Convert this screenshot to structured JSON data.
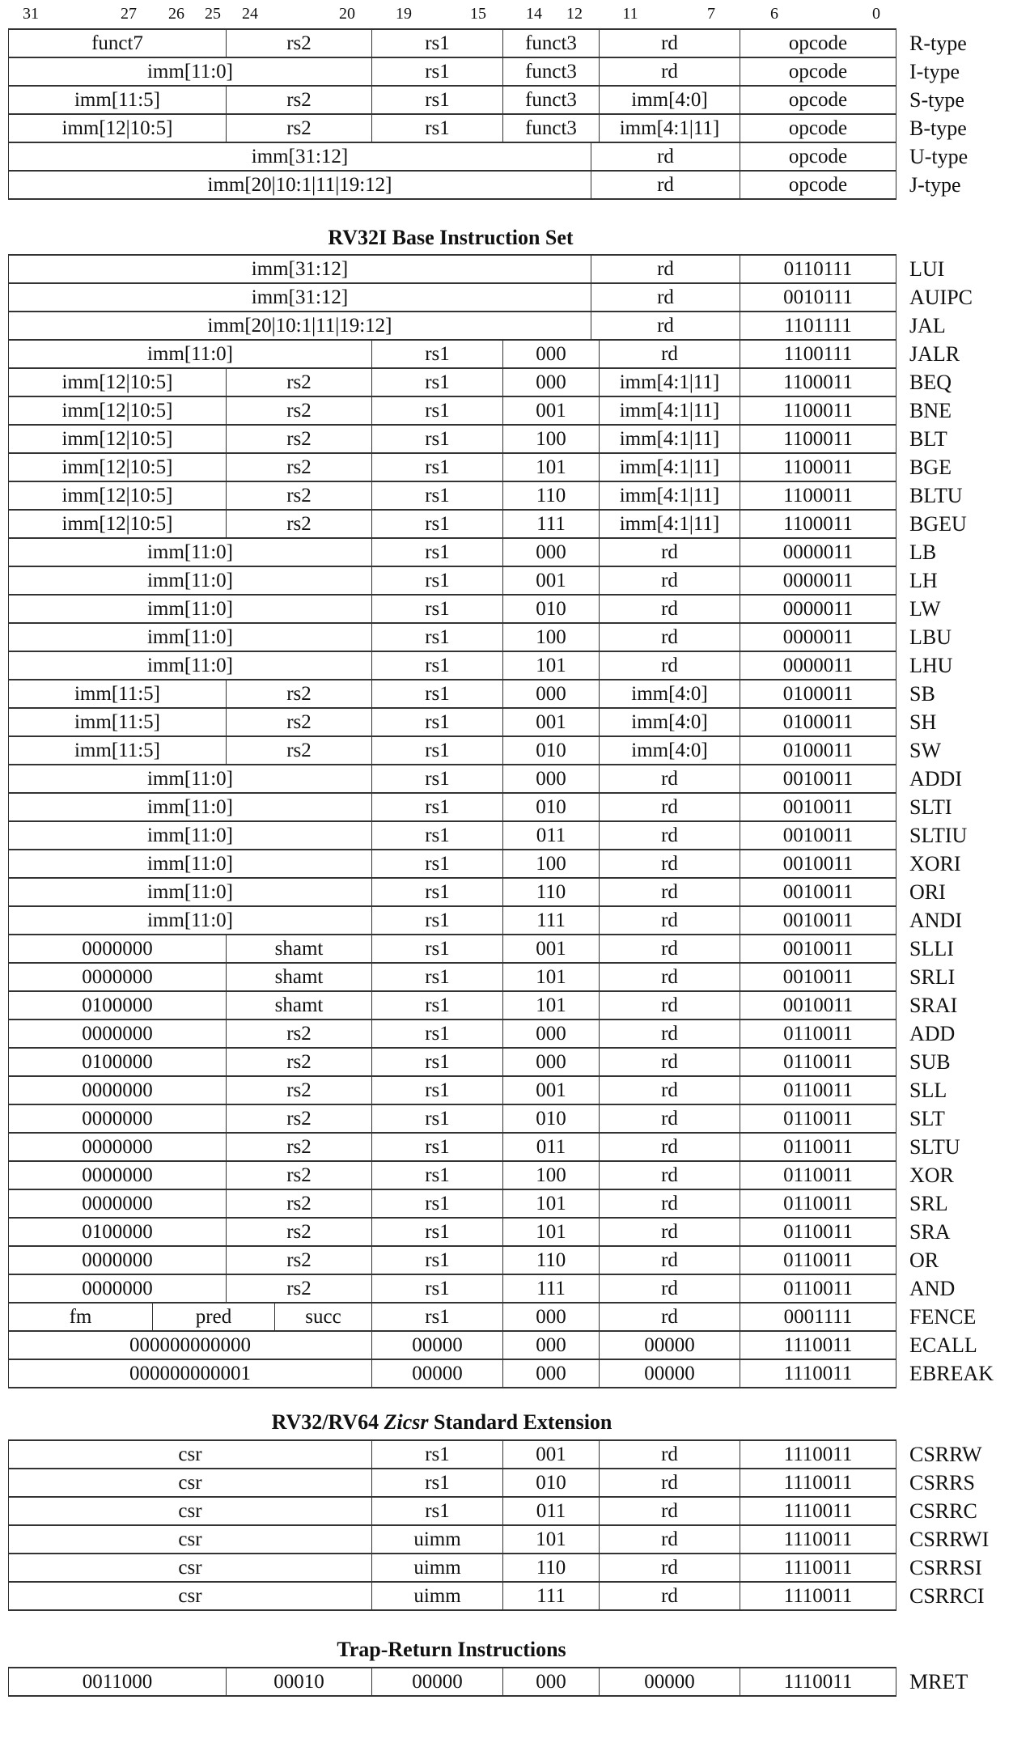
{
  "bit_numbers": [
    "31",
    "27",
    "26",
    "25",
    "24",
    "20",
    "19",
    "15",
    "14",
    "12",
    "11",
    "7",
    "6",
    "0"
  ],
  "formats": [
    {
      "cells": [
        "funct7",
        "rs2",
        "rs1",
        "funct3",
        "rd",
        "opcode"
      ],
      "name": "R-type"
    },
    {
      "cells": [
        "imm[11:0]",
        "rs1",
        "funct3",
        "rd",
        "opcode"
      ],
      "name": "I-type"
    },
    {
      "cells": [
        "imm[11:5]",
        "rs2",
        "rs1",
        "funct3",
        "imm[4:0]",
        "opcode"
      ],
      "name": "S-type"
    },
    {
      "cells": [
        "imm[12|10:5]",
        "rs2",
        "rs1",
        "funct3",
        "imm[4:1|11]",
        "opcode"
      ],
      "name": "B-type"
    },
    {
      "cells": [
        "imm[31:12]",
        "rd",
        "opcode"
      ],
      "name": "U-type"
    },
    {
      "cells": [
        "imm[20|10:1|11|19:12]",
        "rd",
        "opcode"
      ],
      "name": "J-type"
    }
  ],
  "base": {
    "title": "RV32I Base Instruction Set",
    "rows": [
      {
        "cells": [
          "imm[31:12]",
          "rd",
          "0110111"
        ],
        "name": "LUI"
      },
      {
        "cells": [
          "imm[31:12]",
          "rd",
          "0010111"
        ],
        "name": "AUIPC"
      },
      {
        "cells": [
          "imm[20|10:1|11|19:12]",
          "rd",
          "1101111"
        ],
        "name": "JAL"
      },
      {
        "cells": [
          "imm[11:0]",
          "rs1",
          "000",
          "rd",
          "1100111"
        ],
        "name": "JALR"
      },
      {
        "cells": [
          "imm[12|10:5]",
          "rs2",
          "rs1",
          "000",
          "imm[4:1|11]",
          "1100011"
        ],
        "name": "BEQ"
      },
      {
        "cells": [
          "imm[12|10:5]",
          "rs2",
          "rs1",
          "001",
          "imm[4:1|11]",
          "1100011"
        ],
        "name": "BNE"
      },
      {
        "cells": [
          "imm[12|10:5]",
          "rs2",
          "rs1",
          "100",
          "imm[4:1|11]",
          "1100011"
        ],
        "name": "BLT"
      },
      {
        "cells": [
          "imm[12|10:5]",
          "rs2",
          "rs1",
          "101",
          "imm[4:1|11]",
          "1100011"
        ],
        "name": "BGE"
      },
      {
        "cells": [
          "imm[12|10:5]",
          "rs2",
          "rs1",
          "110",
          "imm[4:1|11]",
          "1100011"
        ],
        "name": "BLTU"
      },
      {
        "cells": [
          "imm[12|10:5]",
          "rs2",
          "rs1",
          "111",
          "imm[4:1|11]",
          "1100011"
        ],
        "name": "BGEU"
      },
      {
        "cells": [
          "imm[11:0]",
          "rs1",
          "000",
          "rd",
          "0000011"
        ],
        "name": "LB"
      },
      {
        "cells": [
          "imm[11:0]",
          "rs1",
          "001",
          "rd",
          "0000011"
        ],
        "name": "LH"
      },
      {
        "cells": [
          "imm[11:0]",
          "rs1",
          "010",
          "rd",
          "0000011"
        ],
        "name": "LW"
      },
      {
        "cells": [
          "imm[11:0]",
          "rs1",
          "100",
          "rd",
          "0000011"
        ],
        "name": "LBU"
      },
      {
        "cells": [
          "imm[11:0]",
          "rs1",
          "101",
          "rd",
          "0000011"
        ],
        "name": "LHU"
      },
      {
        "cells": [
          "imm[11:5]",
          "rs2",
          "rs1",
          "000",
          "imm[4:0]",
          "0100011"
        ],
        "name": "SB"
      },
      {
        "cells": [
          "imm[11:5]",
          "rs2",
          "rs1",
          "001",
          "imm[4:0]",
          "0100011"
        ],
        "name": "SH"
      },
      {
        "cells": [
          "imm[11:5]",
          "rs2",
          "rs1",
          "010",
          "imm[4:0]",
          "0100011"
        ],
        "name": "SW"
      },
      {
        "cells": [
          "imm[11:0]",
          "rs1",
          "000",
          "rd",
          "0010011"
        ],
        "name": "ADDI"
      },
      {
        "cells": [
          "imm[11:0]",
          "rs1",
          "010",
          "rd",
          "0010011"
        ],
        "name": "SLTI"
      },
      {
        "cells": [
          "imm[11:0]",
          "rs1",
          "011",
          "rd",
          "0010011"
        ],
        "name": "SLTIU"
      },
      {
        "cells": [
          "imm[11:0]",
          "rs1",
          "100",
          "rd",
          "0010011"
        ],
        "name": "XORI"
      },
      {
        "cells": [
          "imm[11:0]",
          "rs1",
          "110",
          "rd",
          "0010011"
        ],
        "name": "ORI"
      },
      {
        "cells": [
          "imm[11:0]",
          "rs1",
          "111",
          "rd",
          "0010011"
        ],
        "name": "ANDI"
      },
      {
        "cells": [
          "0000000",
          "shamt",
          "rs1",
          "001",
          "rd",
          "0010011"
        ],
        "name": "SLLI"
      },
      {
        "cells": [
          "0000000",
          "shamt",
          "rs1",
          "101",
          "rd",
          "0010011"
        ],
        "name": "SRLI"
      },
      {
        "cells": [
          "0100000",
          "shamt",
          "rs1",
          "101",
          "rd",
          "0010011"
        ],
        "name": "SRAI"
      },
      {
        "cells": [
          "0000000",
          "rs2",
          "rs1",
          "000",
          "rd",
          "0110011"
        ],
        "name": "ADD"
      },
      {
        "cells": [
          "0100000",
          "rs2",
          "rs1",
          "000",
          "rd",
          "0110011"
        ],
        "name": "SUB"
      },
      {
        "cells": [
          "0000000",
          "rs2",
          "rs1",
          "001",
          "rd",
          "0110011"
        ],
        "name": "SLL"
      },
      {
        "cells": [
          "0000000",
          "rs2",
          "rs1",
          "010",
          "rd",
          "0110011"
        ],
        "name": "SLT"
      },
      {
        "cells": [
          "0000000",
          "rs2",
          "rs1",
          "011",
          "rd",
          "0110011"
        ],
        "name": "SLTU"
      },
      {
        "cells": [
          "0000000",
          "rs2",
          "rs1",
          "100",
          "rd",
          "0110011"
        ],
        "name": "XOR"
      },
      {
        "cells": [
          "0000000",
          "rs2",
          "rs1",
          "101",
          "rd",
          "0110011"
        ],
        "name": "SRL"
      },
      {
        "cells": [
          "0100000",
          "rs2",
          "rs1",
          "101",
          "rd",
          "0110011"
        ],
        "name": "SRA"
      },
      {
        "cells": [
          "0000000",
          "rs2",
          "rs1",
          "110",
          "rd",
          "0110011"
        ],
        "name": "OR"
      },
      {
        "cells": [
          "0000000",
          "rs2",
          "rs1",
          "111",
          "rd",
          "0110011"
        ],
        "name": "AND"
      },
      {
        "cells": [
          "fm",
          "pred",
          "succ",
          "rs1",
          "000",
          "rd",
          "0001111"
        ],
        "name": "FENCE"
      },
      {
        "cells": [
          "000000000000",
          "00000",
          "000",
          "00000",
          "1110011"
        ],
        "name": "ECALL"
      },
      {
        "cells": [
          "000000000001",
          "00000",
          "000",
          "00000",
          "1110011"
        ],
        "name": "EBREAK"
      }
    ]
  },
  "zicsr": {
    "title_prefix": "RV32/RV64",
    "title_italic": "Zicsr",
    "title_suffix": "Standard Extension",
    "rows": [
      {
        "cells": [
          "csr",
          "rs1",
          "001",
          "rd",
          "1110011"
        ],
        "name": "CSRRW"
      },
      {
        "cells": [
          "csr",
          "rs1",
          "010",
          "rd",
          "1110011"
        ],
        "name": "CSRRS"
      },
      {
        "cells": [
          "csr",
          "rs1",
          "011",
          "rd",
          "1110011"
        ],
        "name": "CSRRC"
      },
      {
        "cells": [
          "csr",
          "uimm",
          "101",
          "rd",
          "1110011"
        ],
        "name": "CSRRWI"
      },
      {
        "cells": [
          "csr",
          "uimm",
          "110",
          "rd",
          "1110011"
        ],
        "name": "CSRRSI"
      },
      {
        "cells": [
          "csr",
          "uimm",
          "111",
          "rd",
          "1110011"
        ],
        "name": "CSRRCI"
      }
    ]
  },
  "trap": {
    "title": "Trap-Return Instructions",
    "rows": [
      {
        "cells": [
          "0011000",
          "00010",
          "00000",
          "000",
          "00000",
          "1110011"
        ],
        "name": "MRET"
      }
    ]
  }
}
